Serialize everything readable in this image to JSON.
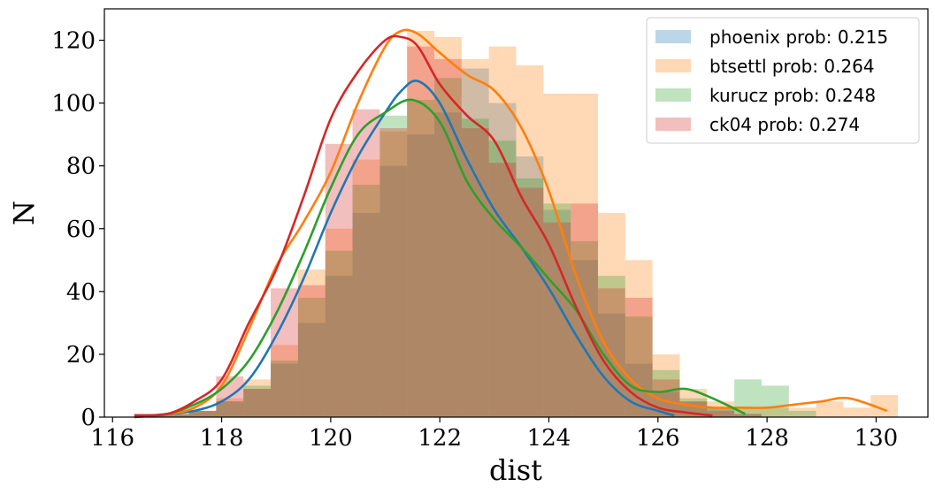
{
  "chart_data": {
    "type": "histogram",
    "xlabel": "dist",
    "ylabel": "N",
    "xlim": [
      115.85,
      130.95
    ],
    "ylim": [
      0,
      130
    ],
    "xticks": [
      116,
      118,
      120,
      122,
      124,
      126,
      128,
      130
    ],
    "yticks": [
      0,
      20,
      40,
      60,
      80,
      100,
      120
    ],
    "grid": false,
    "legend_position": "top-right",
    "series": [
      {
        "name": "phoenix prob: 0.215",
        "color": "#1f77b4",
        "hist_start": 116.4,
        "bin_width": 0.5,
        "counts": [
          1,
          1,
          2,
          5,
          9,
          17,
          30,
          45,
          65,
          80,
          90,
          97,
          111,
          100,
          83,
          66,
          50,
          33,
          17,
          8,
          5,
          3,
          1
        ],
        "kde_x": [
          116.4,
          117,
          117.5,
          118,
          118.5,
          119,
          119.5,
          120,
          120.5,
          121,
          121.3,
          121.6,
          122,
          122.5,
          123,
          123.5,
          124,
          124.5,
          125,
          125.5,
          126,
          126.3
        ],
        "kde_y": [
          0,
          1,
          2,
          5,
          12,
          26,
          44,
          65,
          83,
          97,
          104,
          107,
          100,
          82,
          66,
          54,
          41,
          26,
          13,
          5,
          2,
          0.5
        ]
      },
      {
        "name": "btsettl prob: 0.264",
        "color": "#ff7f0e",
        "hist_start": 116.4,
        "bin_width": 0.5,
        "counts": [
          1,
          1,
          2,
          6,
          12,
          23,
          47,
          60,
          82,
          91,
          123,
          121,
          114,
          118,
          112,
          103,
          103,
          65,
          50,
          20,
          9,
          5,
          3,
          3,
          3,
          5,
          3,
          7
        ],
        "kde_x": [
          116.4,
          117,
          117.5,
          118,
          118.5,
          119,
          119.5,
          120,
          120.5,
          121,
          121.3,
          121.6,
          122,
          122.5,
          123,
          123.5,
          124,
          124.5,
          125,
          125.5,
          126,
          126.5,
          127,
          127.5,
          128,
          128.5,
          129,
          129.5,
          130.2
        ],
        "kde_y": [
          0,
          1,
          3,
          10,
          28,
          48,
          62,
          78,
          100,
          118,
          123,
          122,
          116,
          109,
          104,
          92,
          72,
          45,
          24,
          12,
          6,
          4,
          3,
          3,
          3,
          4,
          5,
          6,
          2
        ]
      },
      {
        "name": "kurucz prob: 0.248",
        "color": "#2ca02c",
        "hist_start": 116.4,
        "bin_width": 0.5,
        "counts": [
          1,
          1,
          2,
          5,
          10,
          18,
          38,
          53,
          74,
          96,
          101,
          108,
          95,
          88,
          76,
          68,
          56,
          45,
          32,
          15,
          6,
          3,
          12,
          10,
          2
        ],
        "kde_x": [
          116.4,
          117,
          117.5,
          118,
          118.5,
          119,
          119.5,
          120,
          120.5,
          121,
          121.5,
          122,
          122.5,
          123,
          123.5,
          124,
          124.5,
          125,
          125.5,
          126,
          126.5,
          127,
          127.6
        ],
        "kde_y": [
          0,
          1,
          4,
          9,
          18,
          33,
          52,
          73,
          90,
          97,
          101,
          94,
          75,
          63,
          54,
          44,
          34,
          20,
          10,
          8,
          9,
          6,
          1
        ]
      },
      {
        "name": "ck04 prob: 0.274",
        "color": "#d62728",
        "hist_start": 116.4,
        "bin_width": 0.5,
        "counts": [
          1,
          1,
          2,
          13,
          9,
          41,
          42,
          87,
          98,
          92,
          118,
          114,
          92,
          81,
          73,
          62,
          68,
          41,
          38,
          12,
          5,
          2,
          1
        ],
        "kde_x": [
          116.4,
          117,
          117.5,
          118,
          118.5,
          119,
          119.5,
          120,
          120.5,
          121,
          121.3,
          121.6,
          122,
          122.5,
          123,
          123.5,
          124,
          124.5,
          125,
          125.5,
          126,
          126.5,
          127
        ],
        "kde_y": [
          0.5,
          1,
          5,
          12,
          30,
          47,
          70,
          95,
          110,
          120,
          121,
          118,
          106,
          96,
          88,
          70,
          55,
          35,
          18,
          8,
          3,
          1.5,
          0.5
        ]
      }
    ]
  }
}
